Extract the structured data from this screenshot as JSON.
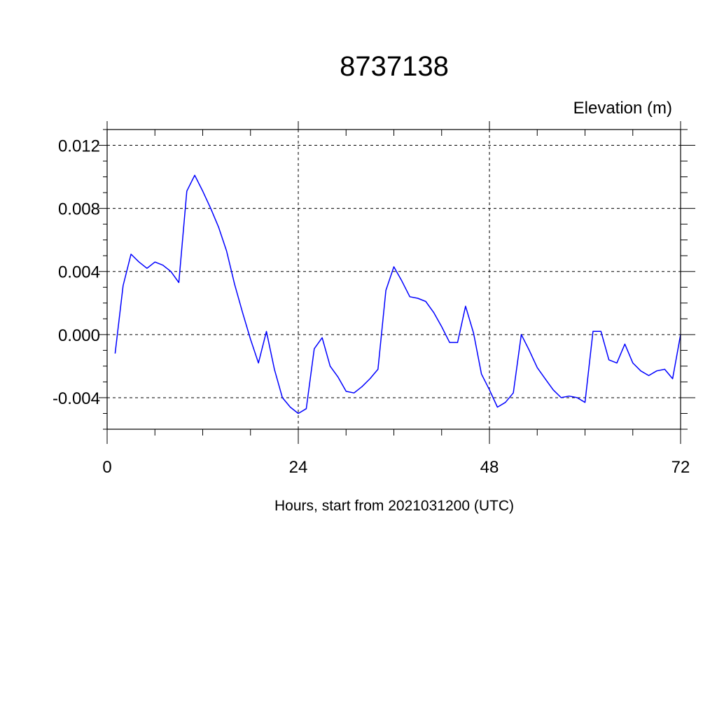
{
  "chart_data": {
    "type": "line",
    "title": "8737138",
    "ylabel": "Elevation (m)",
    "xlabel": "Hours, start from 2021031200 (UTC)",
    "xlim": [
      0,
      72
    ],
    "ylim": [
      -0.006,
      0.013
    ],
    "x_ticks": [
      0,
      24,
      48,
      72
    ],
    "x_tick_labels": [
      "0",
      "24",
      "48",
      "72"
    ],
    "y_ticks": [
      -0.004,
      0.0,
      0.004,
      0.008,
      0.012
    ],
    "y_tick_labels": [
      "-0.004",
      "0.000",
      "0.004",
      "0.008",
      "0.012"
    ],
    "grid": true,
    "line_color": "#0000ff",
    "series": [
      {
        "x": [
          1,
          2,
          3,
          4,
          5,
          6,
          7,
          8,
          9,
          10,
          11,
          12,
          13,
          14,
          15,
          16,
          17,
          18,
          19,
          20,
          21,
          22,
          23,
          24,
          25,
          26,
          27,
          28,
          29,
          30,
          31,
          32,
          33,
          34,
          35,
          36,
          37,
          38,
          39,
          40,
          41,
          42,
          43,
          44,
          45,
          46,
          47,
          48,
          49,
          50,
          51,
          52,
          53,
          54,
          55,
          56,
          57,
          58,
          59,
          60,
          61,
          62,
          63,
          64,
          65,
          66,
          67,
          68,
          69,
          70,
          71,
          72
        ],
        "values": [
          -0.0012,
          0.0031,
          0.0051,
          0.0046,
          0.0042,
          0.0046,
          0.0044,
          0.004,
          0.0033,
          0.0091,
          0.0101,
          0.0091,
          0.008,
          0.0068,
          0.0053,
          0.0032,
          0.0014,
          -0.0003,
          -0.0018,
          0.0002,
          -0.0022,
          -0.004,
          -0.0046,
          -0.005,
          -0.0047,
          -0.0009,
          -0.0002,
          -0.002,
          -0.0027,
          -0.0036,
          -0.0037,
          -0.0033,
          -0.0028,
          -0.0022,
          0.0028,
          0.0043,
          0.0034,
          0.0024,
          0.0023,
          0.0021,
          0.0014,
          0.0005,
          -0.0005,
          -0.0005,
          0.0018,
          0.0001,
          -0.0025,
          -0.0035,
          -0.0046,
          -0.0043,
          -0.0037,
          0.0,
          -0.001,
          -0.0021,
          -0.0028,
          -0.0035,
          -0.004,
          -0.0039,
          -0.004,
          -0.0043,
          0.0002,
          0.0002,
          -0.0016,
          -0.0018,
          -0.0006,
          -0.0018,
          -0.0023,
          -0.0026,
          -0.0023,
          -0.0022,
          -0.0028,
          0.0
        ]
      }
    ]
  }
}
